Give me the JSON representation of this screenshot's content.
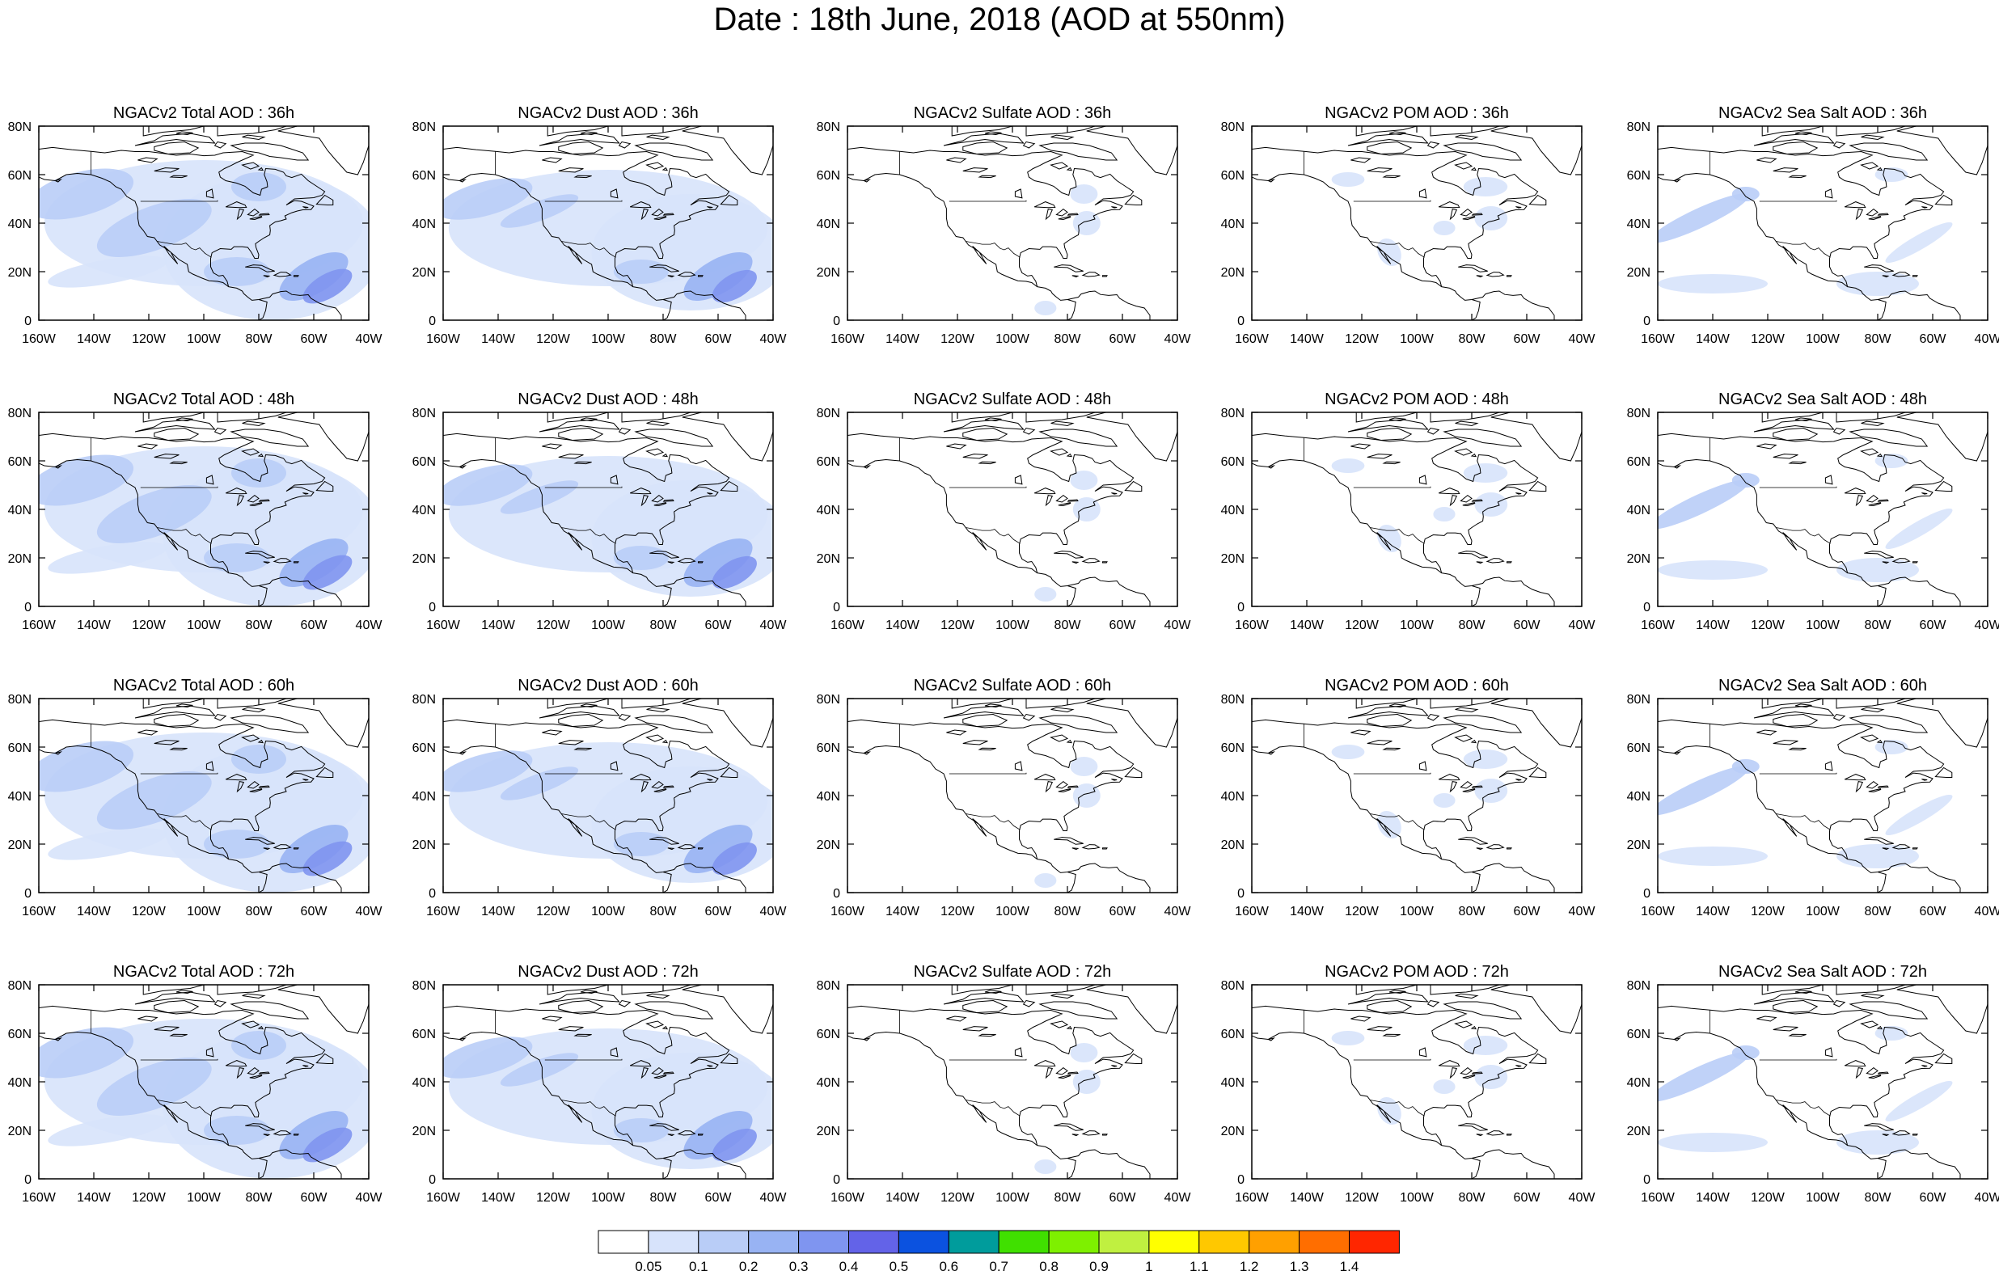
{
  "title": "Date : 18th June, 2018 (AOD at 550nm)",
  "lon_ticks": [
    "160W",
    "140W",
    "120W",
    "100W",
    "80W",
    "60W",
    "40W"
  ],
  "lat_ticks": [
    "0",
    "20N",
    "40N",
    "60N",
    "80N"
  ],
  "colors": {
    "coastline": "#000000",
    "frame": "#000000"
  },
  "colorbar": {
    "colors": [
      "#ffffff",
      "#d7e3fb",
      "#b9cdf7",
      "#98b3f3",
      "#7f95f0",
      "#6363e8",
      "#0b52e0",
      "#009c9c",
      "#40e000",
      "#7ef000",
      "#c0f040",
      "#ffff00",
      "#ffc800",
      "#ffa000",
      "#ff6e00",
      "#ff2600"
    ],
    "labels": [
      "0.05",
      "0.1",
      "0.2",
      "0.3",
      "0.4",
      "0.5",
      "0.6",
      "0.7",
      "0.8",
      "0.9",
      "1",
      "1.1",
      "1.2",
      "1.3",
      "1.4"
    ]
  },
  "columns": [
    {
      "species": "total"
    },
    {
      "species": "dust"
    },
    {
      "species": "sulfate"
    },
    {
      "species": "pom"
    },
    {
      "species": "seasalt"
    }
  ],
  "rows": [
    {
      "hour": "36h"
    },
    {
      "hour": "48h"
    },
    {
      "hour": "60h"
    },
    {
      "hour": "72h"
    }
  ],
  "panels": [
    {
      "title": "NGACv2 Total AOD : 36h"
    },
    {
      "title": "NGACv2 Dust AOD : 36h"
    },
    {
      "title": "NGACv2 Sulfate AOD : 36h"
    },
    {
      "title": "NGACv2 POM AOD : 36h"
    },
    {
      "title": "NGACv2 Sea Salt AOD : 36h"
    },
    {
      "title": "NGACv2 Total AOD : 48h"
    },
    {
      "title": "NGACv2 Dust AOD : 48h"
    },
    {
      "title": "NGACv2 Sulfate AOD : 48h"
    },
    {
      "title": "NGACv2 POM AOD : 48h"
    },
    {
      "title": "NGACv2 Sea Salt AOD : 48h"
    },
    {
      "title": "NGACv2 Total AOD : 60h"
    },
    {
      "title": "NGACv2 Dust AOD : 60h"
    },
    {
      "title": "NGACv2 Sulfate AOD : 60h"
    },
    {
      "title": "NGACv2 POM AOD : 60h"
    },
    {
      "title": "NGACv2 Sea Salt AOD : 60h"
    },
    {
      "title": "NGACv2 Total AOD : 72h"
    },
    {
      "title": "NGACv2 Dust AOD : 72h"
    },
    {
      "title": "NGACv2 Sulfate AOD : 72h"
    },
    {
      "title": "NGACv2 POM AOD : 72h"
    },
    {
      "title": "NGACv2 Sea Salt  AOD : 72h"
    }
  ]
}
